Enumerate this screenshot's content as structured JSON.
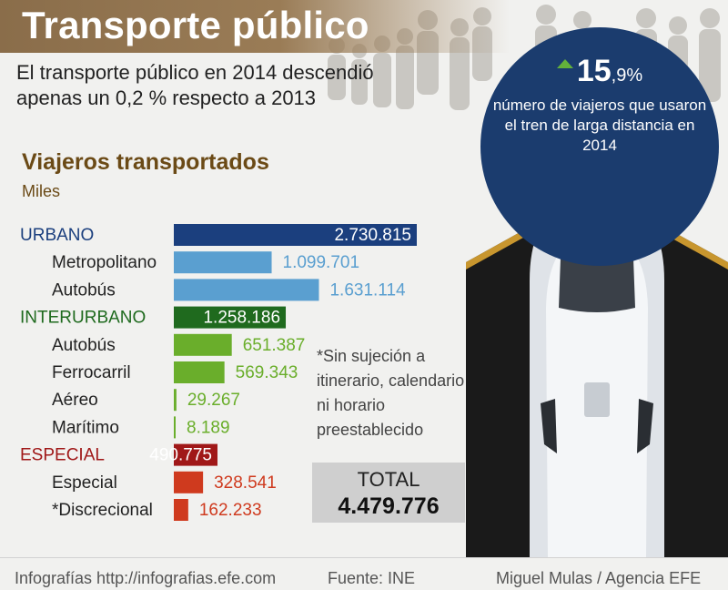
{
  "header": {
    "title": "Transporte público",
    "subtitle": "El transporte público en 2014 descendió apenas un 0,2 % respecto a 2013"
  },
  "highlight": {
    "value_main": "15",
    "value_dec": ",9%",
    "trend": "up",
    "description": "número de viajeros que usaron el tren de larga distancia en 2014"
  },
  "note": "*Sin sujeción a itinerario, calendario ni horario preestablecido",
  "total": {
    "label": "TOTAL",
    "value": "4.479.776"
  },
  "footer": {
    "left": "Infografías http://infografias.efe.com",
    "center": "Fuente: INE",
    "right": "Miguel Mulas / Agencia EFE"
  },
  "colors": {
    "urbano": "#1b3f7e",
    "urbano_sub": "#5a9fd0",
    "interurbano": "#1f6a1e",
    "interurbano_sub": "#6aae2b",
    "especial": "#a01818",
    "especial_sub": "#cf3a1e",
    "circle": "#1b3c6e",
    "trend_up": "#63b13b"
  },
  "chart_data": {
    "type": "bar",
    "orientation": "horizontal",
    "title": "Viajeros transportados",
    "unit": "Miles",
    "xlim": [
      0,
      2730815
    ],
    "grid": false,
    "rows": [
      {
        "label": "URBANO",
        "value": 2730815,
        "display": "2.730.815",
        "level": "category",
        "group": "urbano"
      },
      {
        "label": "Metropolitano",
        "value": 1099701,
        "display": "1.099.701",
        "level": "sub",
        "group": "urbano"
      },
      {
        "label": "Autobús",
        "value": 1631114,
        "display": "1.631.114",
        "level": "sub",
        "group": "urbano"
      },
      {
        "label": "INTERURBANO",
        "value": 1258186,
        "display": "1.258.186",
        "level": "category",
        "group": "interurbano"
      },
      {
        "label": "Autobús",
        "value": 651387,
        "display": "651.387",
        "level": "sub",
        "group": "interurbano"
      },
      {
        "label": "Ferrocarril",
        "value": 569343,
        "display": "569.343",
        "level": "sub",
        "group": "interurbano"
      },
      {
        "label": "Aéreo",
        "value": 29267,
        "display": "29.267",
        "level": "sub",
        "group": "interurbano"
      },
      {
        "label": "Marítimo",
        "value": 8189,
        "display": "8.189",
        "level": "sub",
        "group": "interurbano"
      },
      {
        "label": "ESPECIAL",
        "value": 490775,
        "display": "490.775",
        "level": "category",
        "group": "especial"
      },
      {
        "label": "Especial",
        "value": 328541,
        "display": "328.541",
        "level": "sub",
        "group": "especial"
      },
      {
        "label": "*Discrecional",
        "value": 162233,
        "display": "162.233",
        "level": "sub",
        "group": "especial"
      }
    ]
  }
}
